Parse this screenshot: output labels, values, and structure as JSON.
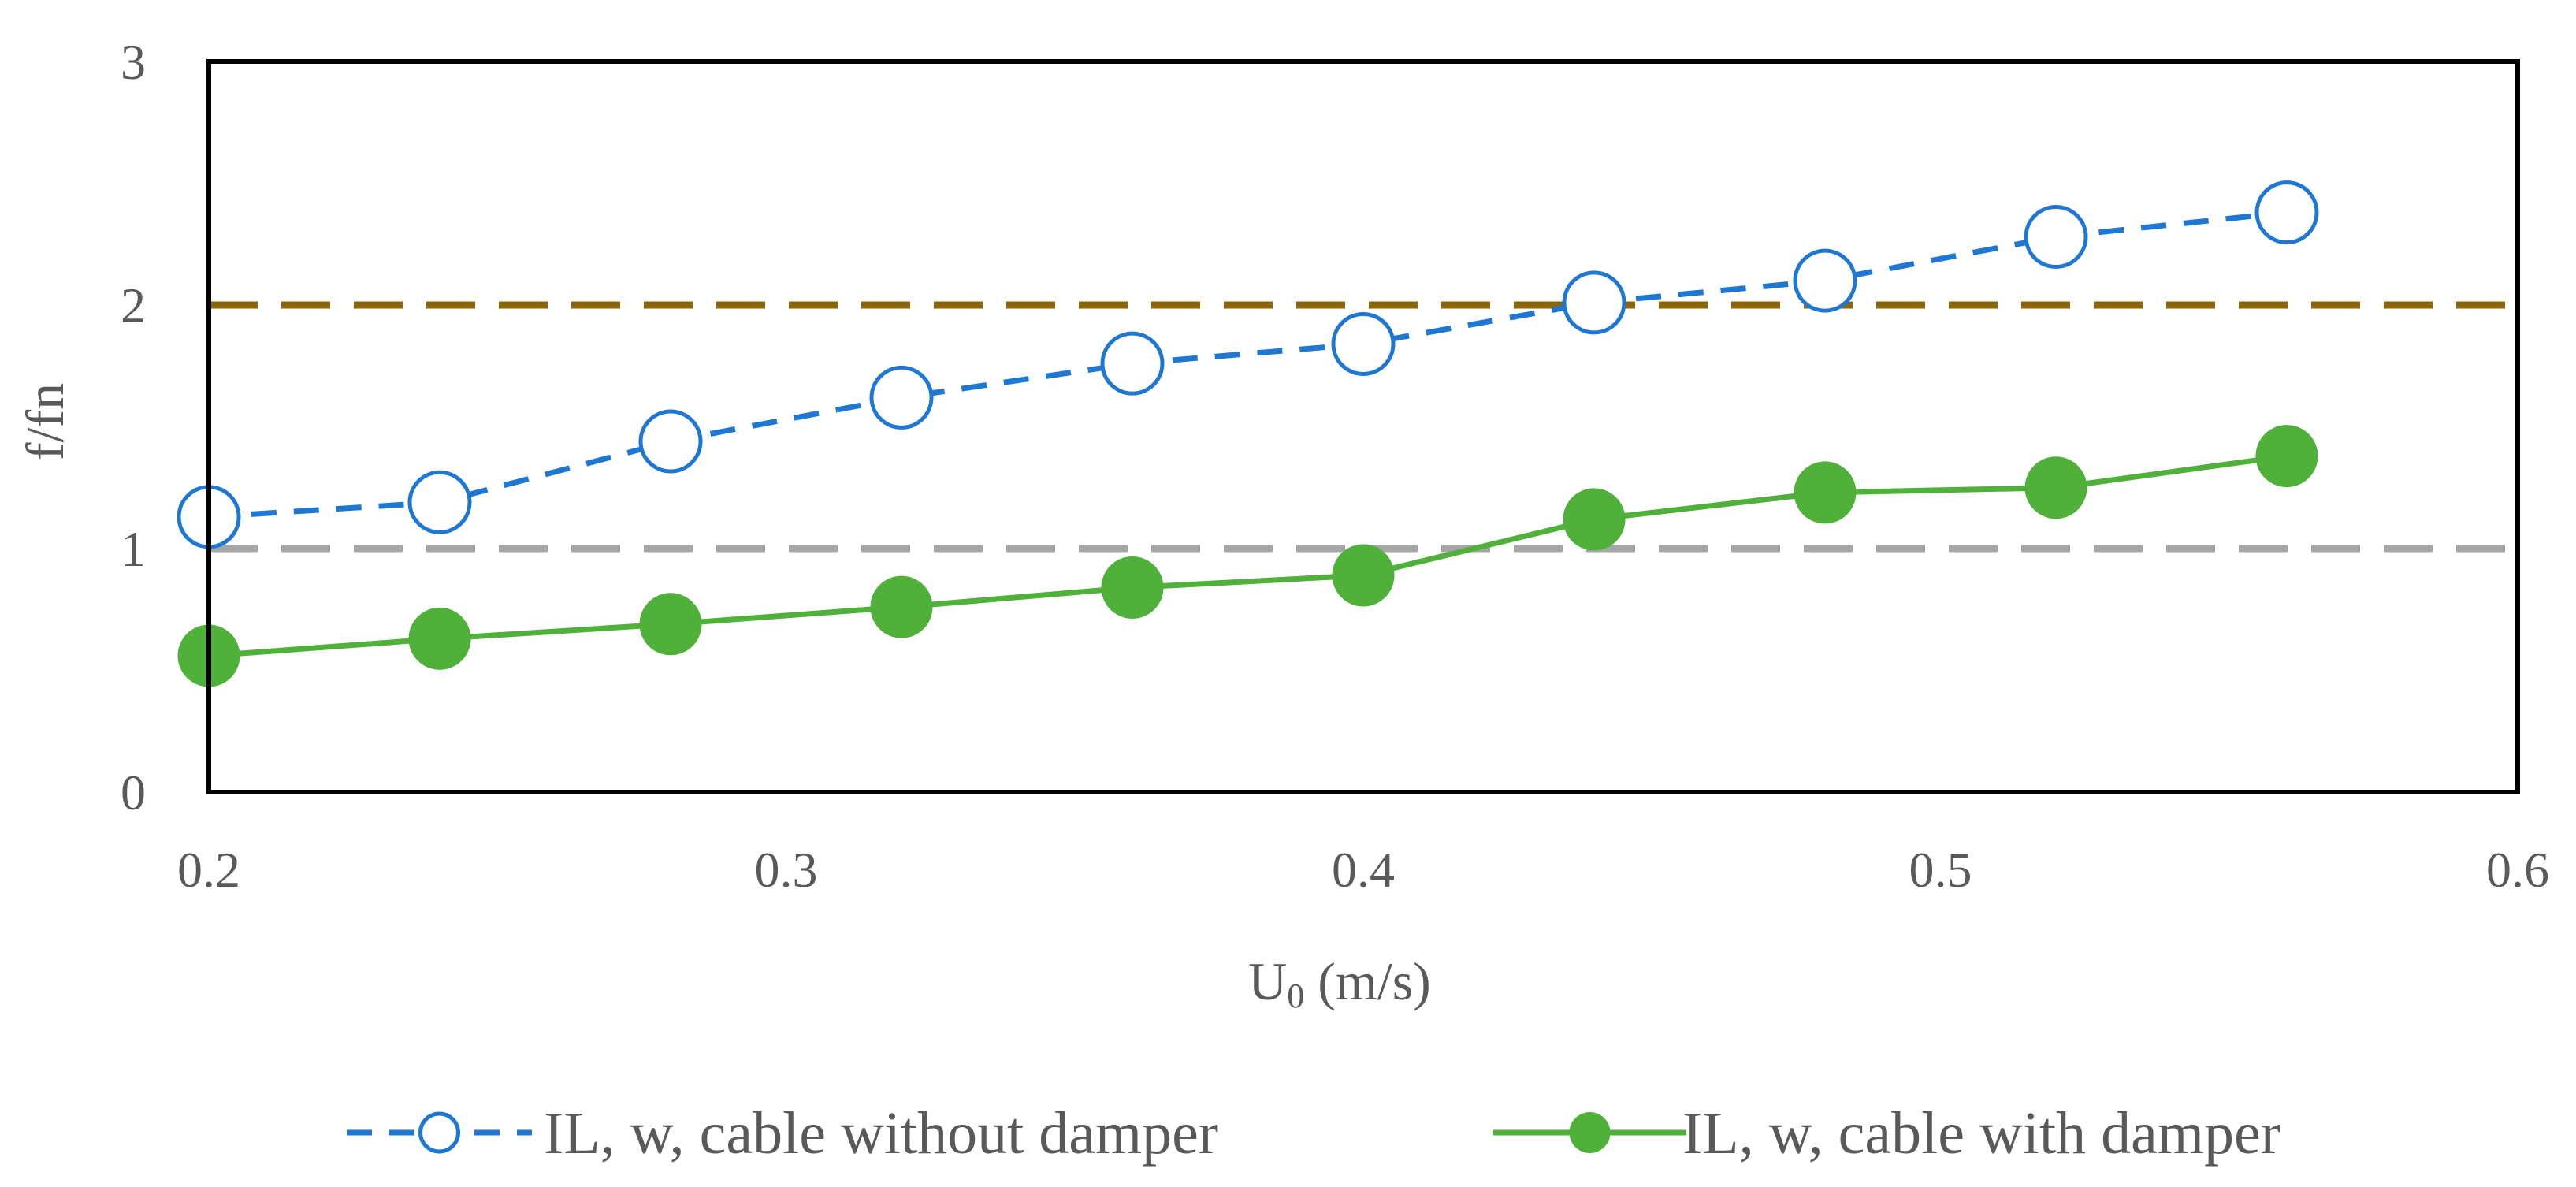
{
  "chart_data": {
    "type": "line",
    "title": "",
    "xlabel": "U",
    "xlabel_sub": "0",
    "xlabel_unit": " (m/s)",
    "ylabel": "f/fn",
    "xlim": [
      0.2,
      0.6
    ],
    "ylim": [
      0,
      3
    ],
    "x_ticks": [
      "0.2",
      "0.3",
      "0.4",
      "0.5",
      "0.6"
    ],
    "y_ticks": [
      "0",
      "1",
      "2",
      "3"
    ],
    "grid": false,
    "legend_position": "bottom",
    "series": [
      {
        "name": "IL, w, cable without damper",
        "color": "#1f77d4",
        "line_style": "dashed",
        "marker": "open-circle",
        "x": [
          0.2,
          0.24,
          0.28,
          0.32,
          0.36,
          0.4,
          0.44,
          0.48,
          0.52,
          0.56
        ],
        "y": [
          1.13,
          1.19,
          1.44,
          1.62,
          1.76,
          1.84,
          2.01,
          2.1,
          2.28,
          2.38
        ]
      },
      {
        "name": "IL, w, cable with damper",
        "color": "#4fb03a",
        "line_style": "solid",
        "marker": "filled-circle",
        "x": [
          0.2,
          0.24,
          0.28,
          0.32,
          0.36,
          0.4,
          0.44,
          0.48,
          0.52,
          0.56
        ],
        "y": [
          0.56,
          0.63,
          0.69,
          0.76,
          0.84,
          0.89,
          1.12,
          1.23,
          1.25,
          1.38
        ]
      }
    ],
    "reference_lines": [
      {
        "y": 2,
        "color": "#8b6508",
        "line_style": "dashed"
      },
      {
        "y": 1,
        "color": "#a6a6a6",
        "line_style": "dashed"
      }
    ]
  }
}
